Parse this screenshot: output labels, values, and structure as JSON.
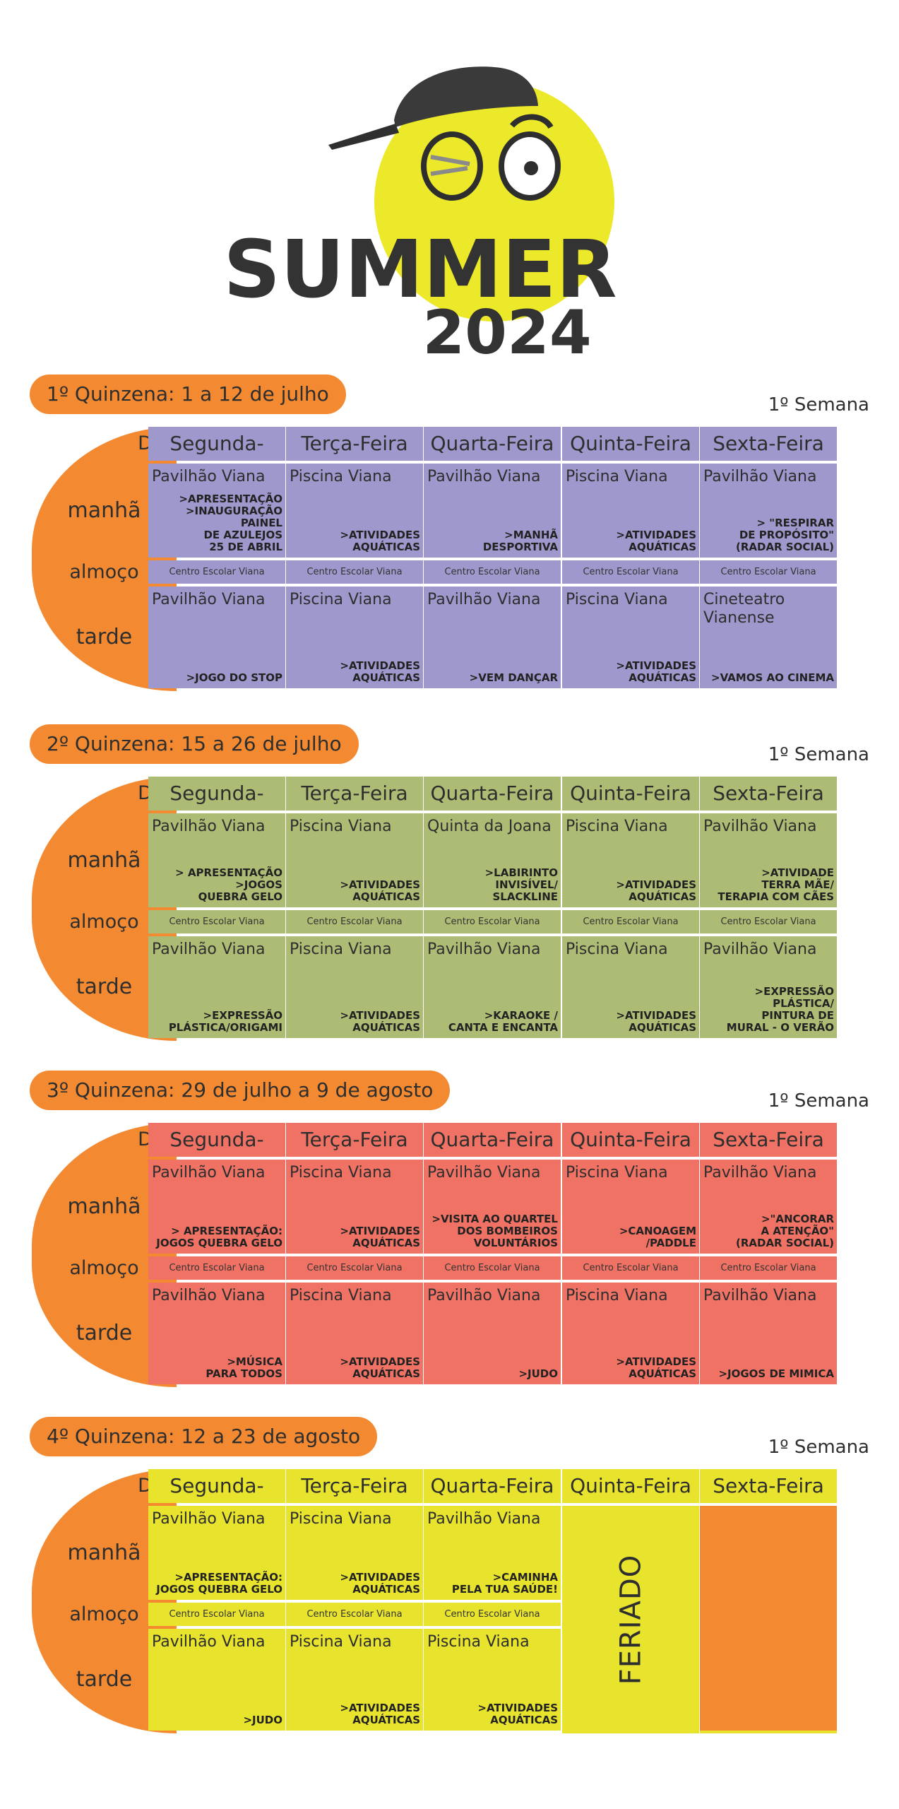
{
  "logo": {
    "title": "SUMMER",
    "year": "2024",
    "colors": {
      "face": "#ece82a",
      "dark": "#333333"
    }
  },
  "labels": {
    "dia": "Dia",
    "manha": "manhã",
    "almoco": "almoço",
    "tarde": "tarde",
    "lunch_place": "Centro Escolar Viana"
  },
  "days": [
    "Segunda-Feira",
    "Terça-Feira",
    "Quarta-Feira",
    "Quinta-Feira",
    "Sexta-Feira"
  ],
  "quinzenas": [
    {
      "title": "1º Quinzena: 1 a 12 de julho",
      "week": "1º Semana",
      "color": "#9f98cc",
      "manha": [
        {
          "place": "Pavilhão Viana",
          "activity": ">Apresentação\n>Inauguração\nPainel\nde Azulejos\n25 de Abril"
        },
        {
          "place": "Piscina Viana",
          "activity": ">Atividades\nAquáticas"
        },
        {
          "place": "Pavilhão Viana",
          "activity": ">Manhã\nDesportiva"
        },
        {
          "place": "Piscina Viana",
          "activity": ">Atividades\nAquáticas"
        },
        {
          "place": "Pavilhão Viana",
          "activity": "> \"Respirar\nde Propósito\"\n(Radar Social)"
        }
      ],
      "almoco": [
        "Centro Escolar Viana",
        "Centro Escolar Viana",
        "Centro Escolar Viana",
        "Centro Escolar Viana",
        "Centro Escolar Viana"
      ],
      "tarde": [
        {
          "place": "Pavilhão Viana",
          "activity": ">Jogo do Stop"
        },
        {
          "place": "Piscina Viana",
          "activity": ">Atividades\nAquáticas"
        },
        {
          "place": "Pavilhão Viana",
          "activity": ">Vem Dançar"
        },
        {
          "place": "Piscina Viana",
          "activity": ">Atividades\nAquáticas"
        },
        {
          "place": "Cineteatro Vianense",
          "activity": ">Vamos ao Cinema"
        }
      ]
    },
    {
      "title": "2º Quinzena: 15 a 26 de julho",
      "week": "1º Semana",
      "color": "#adbc75",
      "manha": [
        {
          "place": "Pavilhão Viana",
          "activity": "> Apresentação\n>Jogos\nQuebra Gelo"
        },
        {
          "place": "Piscina Viana",
          "activity": ">Atividades\nAquáticas"
        },
        {
          "place": "Quinta da Joana",
          "activity": ">Labirinto\nInvisível/\nSlackline"
        },
        {
          "place": "Piscina Viana",
          "activity": ">Atividades\nAquáticas"
        },
        {
          "place": "Pavilhão Viana",
          "activity": ">Atividade\nTerra Mãe/\nTerapia com Cães"
        }
      ],
      "almoco": [
        "Centro Escolar Viana",
        "Centro Escolar Viana",
        "Centro Escolar Viana",
        "Centro Escolar Viana",
        "Centro Escolar Viana"
      ],
      "tarde": [
        {
          "place": "Pavilhão Viana",
          "activity": ">Expressão\nPlástica/Origami"
        },
        {
          "place": "Piscina Viana",
          "activity": ">Atividades\nAquáticas"
        },
        {
          "place": "Pavilhão Viana",
          "activity": ">Karaoke /\nCanta e Encanta"
        },
        {
          "place": "Piscina Viana",
          "activity": ">Atividades\nAquáticas"
        },
        {
          "place": "Pavilhão Viana",
          "activity": ">Expressão\nPlástica/\nPintura de\nMural - O Verão"
        }
      ]
    },
    {
      "title": "3º Quinzena: 29 de julho a 9 de agosto",
      "week": "1º Semana",
      "color": "#f07264",
      "manha": [
        {
          "place": "Pavilhão Viana",
          "activity": "> Apresentação:\nJogos Quebra Gelo"
        },
        {
          "place": "Piscina Viana",
          "activity": ">Atividades\nAquáticas"
        },
        {
          "place": "Pavilhão Viana",
          "activity": ">Visita ao Quartel\ndos Bombeiros\nVoluntários"
        },
        {
          "place": "Piscina Viana",
          "activity": ">Canoagem\n/Paddle"
        },
        {
          "place": "Pavilhão Viana",
          "activity": ">\"Ancorar\na Atenção\"\n(Radar Social)"
        }
      ],
      "almoco": [
        "Centro Escolar Viana",
        "Centro Escolar Viana",
        "Centro Escolar Viana",
        "Centro Escolar Viana",
        "Centro Escolar Viana"
      ],
      "tarde": [
        {
          "place": "Pavilhão Viana",
          "activity": ">Música\npara Todos"
        },
        {
          "place": "Piscina Viana",
          "activity": ">Atividades\nAquáticas"
        },
        {
          "place": "Pavilhão Viana",
          "activity": ">Judo"
        },
        {
          "place": "Piscina Viana",
          "activity": ">Atividades\nAquáticas"
        },
        {
          "place": "Pavilhão Viana",
          "activity": ">Jogos de Mimica"
        }
      ]
    },
    {
      "title": "4º Quinzena: 12 a 23 de agosto",
      "week": "1º Semana",
      "color": "#e8e42e",
      "feriado": "FERIADO",
      "manha": [
        {
          "place": "Pavilhão Viana",
          "activity": ">Apresentação:\nJogos Quebra Gelo"
        },
        {
          "place": "Piscina Viana",
          "activity": ">Atividades\nAquáticas"
        },
        {
          "place": "Pavilhão Viana",
          "activity": ">Caminha\npela tua Saúde!"
        }
      ],
      "almoco": [
        "Centro Escolar Viana",
        "Centro Escolar Viana",
        "Centro Escolar Viana"
      ],
      "tarde": [
        {
          "place": "Pavilhão Viana",
          "activity": ">Judo"
        },
        {
          "place": "Piscina Viana",
          "activity": ">Atividades\nAquáticas"
        },
        {
          "place": "Piscina Viana",
          "activity": ">Atividades\nAquáticas"
        }
      ]
    }
  ]
}
